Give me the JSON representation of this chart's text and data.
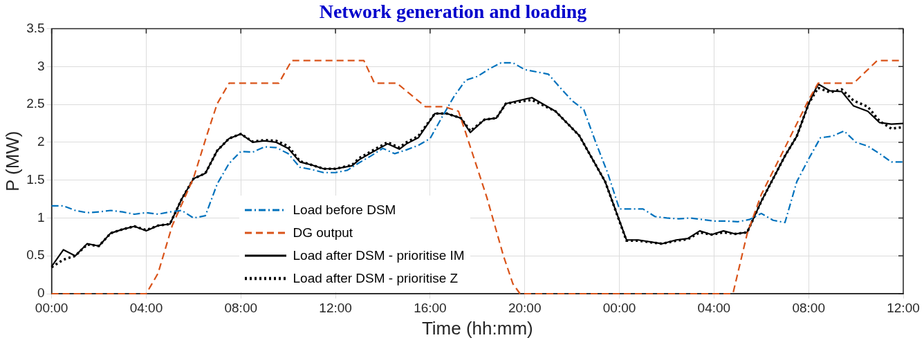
{
  "chart_data": {
    "type": "line",
    "title": "Network generation and loading",
    "xlabel": "Time (hh:mm)",
    "ylabel": "P (MW)",
    "xlim": [
      "--01-01T00:00",
      "--01-02T12:00"
    ],
    "xticks": [
      {
        "value": "--01-01T00:00",
        "label": "00:00"
      },
      {
        "value": "--01-01T04:00",
        "label": "04:00"
      },
      {
        "value": "--01-01T08:00",
        "label": "08:00"
      },
      {
        "value": "--01-01T12:00",
        "label": "12:00"
      },
      {
        "value": "--01-01T16:00",
        "label": "16:00"
      },
      {
        "value": "--01-01T20:00",
        "label": "20:00"
      },
      {
        "value": "--01-02T00:00",
        "label": "00:00"
      },
      {
        "value": "--01-02T04:00",
        "label": "04:00"
      },
      {
        "value": "--01-02T08:00",
        "label": "08:00"
      },
      {
        "value": "--01-02T12:00",
        "label": "12:00"
      }
    ],
    "ylim": [
      0,
      3.5
    ],
    "yticks": [
      0,
      0.5,
      1,
      1.5,
      2,
      2.5,
      3,
      3.5
    ],
    "grid": true,
    "legend": "bottom left",
    "marker": "none",
    "x": [
      "--01-01T00:00",
      "--01-01T00:30",
      "--01-01T01:00",
      "--01-01T01:30",
      "--01-01T02:00",
      "--01-01T02:30",
      "--01-01T03:00",
      "--01-01T03:30",
      "--01-01T04:00",
      "--01-01T04:30",
      "--01-01T05:00",
      "--01-01T05:30",
      "--01-01T06:00",
      "--01-01T06:30",
      "--01-01T07:00",
      "--01-01T07:30",
      "--01-01T08:00",
      "--01-01T08:30",
      "--01-01T09:00",
      "--01-01T09:30",
      "--01-01T10:00",
      "--01-01T10:30",
      "--01-01T11:00",
      "--01-01T11:30",
      "--01-01T12:00",
      "--01-01T12:30",
      "--01-01T13:00",
      "--01-01T13:30",
      "--01-01T14:00",
      "--01-01T14:30",
      "--01-01T15:00",
      "--01-01T15:30",
      "--01-01T16:00",
      "--01-01T16:30",
      "--01-01T17:00",
      "--01-01T17:30",
      "--01-01T18:00",
      "--01-01T18:30",
      "--01-01T19:00",
      "--01-01T19:30",
      "--01-01T20:00",
      "--01-01T20:30",
      "--01-01T21:00",
      "--01-01T21:30",
      "--01-01T22:00",
      "--01-01T22:30",
      "--01-01T23:00",
      "--01-01T23:30",
      "--01-02T00:00",
      "--01-02T00:30",
      "--01-02T01:00",
      "--01-02T01:30",
      "--01-02T02:00",
      "--01-02T02:30",
      "--01-02T03:00",
      "--01-02T03:30",
      "--01-02T04:00",
      "--01-02T04:30",
      "--01-02T05:00",
      "--01-02T05:30",
      "--01-02T06:00",
      "--01-02T06:30",
      "--01-02T07:00",
      "--01-02T07:30",
      "--01-02T08:00",
      "--01-02T08:30",
      "--01-02T09:00",
      "--01-02T09:30",
      "--01-02T10:00",
      "--01-02T10:30",
      "--01-02T11:00",
      "--01-02T11:30",
      "--01-02T12:00"
    ],
    "series": [
      {
        "name": "Load before DSM",
        "color": "#0072bd",
        "line_style": "dashdot",
        "values": [
          1.16,
          1.16,
          1.1,
          1.07,
          1.08,
          1.1,
          1.08,
          1.05,
          1.07,
          1.05,
          1.08,
          1.1,
          1.0,
          1.03,
          1.45,
          1.72,
          1.88,
          1.87,
          1.94,
          1.93,
          1.85,
          1.67,
          1.64,
          1.6,
          1.6,
          1.63,
          1.73,
          1.82,
          1.92,
          1.85,
          1.9,
          1.96,
          2.05,
          2.33,
          2.6,
          2.82,
          2.87,
          2.97,
          3.05,
          3.05,
          2.96,
          2.93,
          2.9,
          2.72,
          2.55,
          2.43,
          2.0,
          1.6,
          1.12,
          1.12,
          1.12,
          1.02,
          1.0,
          0.99,
          1.0,
          0.98,
          0.96,
          0.96,
          0.95,
          0.98,
          1.06,
          0.97,
          0.94,
          1.48,
          1.78,
          2.06,
          2.08,
          2.15,
          2.0,
          1.95,
          1.85,
          1.74,
          1.74
        ]
      },
      {
        "name": "DG output",
        "color": "#d95319",
        "line_style": "dashed",
        "x": [
          "--01-01T00:00",
          "--01-01T04:00",
          "--01-01T04:30",
          "--01-01T05:06",
          "--01-01T06:00",
          "--01-01T06:36",
          "--01-01T07:00",
          "--01-01T07:30",
          "--01-01T09:36",
          "--01-01T10:09",
          "--01-01T13:12",
          "--01-01T13:39",
          "--01-01T14:36",
          "--01-01T15:48",
          "--01-01T16:36",
          "--01-01T17:12",
          "--01-01T17:30",
          "--01-01T18:24",
          "--01-01T19:06",
          "--01-01T19:30",
          "--01-01T19:48",
          "--01-02T04:48",
          "--01-02T05:24",
          "--01-02T06:00",
          "--01-02T07:00",
          "--01-02T08:00",
          "--01-02T08:24",
          "--01-02T09:54",
          "--01-02T10:54",
          "--01-02T12:00"
        ],
        "values": [
          0,
          0,
          0.27,
          0.9,
          1.53,
          2.13,
          2.51,
          2.78,
          2.78,
          3.08,
          3.08,
          2.78,
          2.78,
          2.47,
          2.47,
          2.41,
          2.13,
          1.27,
          0.5,
          0.13,
          0,
          0,
          0.79,
          1.31,
          1.93,
          2.56,
          2.78,
          2.78,
          3.08,
          3.08
        ]
      },
      {
        "name": "Load after DSM - prioritise IM",
        "color": "#000000",
        "line_style": "solid",
        "x": [
          "--01-01T00:00",
          "--01-01T00:30",
          "--01-01T01:00",
          "--01-01T01:30",
          "--01-01T02:00",
          "--01-01T02:30",
          "--01-01T03:00",
          "--01-01T03:30",
          "--01-01T04:00",
          "--01-01T04:30",
          "--01-01T05:00",
          "--01-01T05:30",
          "--01-01T06:00",
          "--01-01T06:30",
          "--01-01T07:00",
          "--01-01T07:30",
          "--01-01T08:00",
          "--01-01T08:30",
          "--01-01T09:00",
          "--01-01T09:30",
          "--01-01T10:00",
          "--01-01T10:30",
          "--01-01T11:00",
          "--01-01T11:30",
          "--01-01T12:00",
          "--01-01T12:42",
          "--01-01T13:00",
          "--01-01T13:30",
          "--01-01T14:12",
          "--01-01T14:42",
          "--01-01T15:00",
          "--01-01T15:30",
          "--01-01T16:12",
          "--01-01T16:42",
          "--01-01T17:18",
          "--01-01T17:42",
          "--01-01T18:18",
          "--01-01T18:48",
          "--01-01T19:12",
          "--01-01T20:18",
          "--01-01T21:18",
          "--01-01T22:18",
          "--01-01T23:24",
          "--01-02T00:18",
          "--01-02T00:48",
          "--01-02T01:48",
          "--01-02T02:24",
          "--01-02T02:54",
          "--01-02T03:24",
          "--01-02T03:54",
          "--01-02T04:24",
          "--01-02T04:54",
          "--01-02T05:24",
          "--01-02T06:00",
          "--01-02T07:00",
          "--01-02T07:30",
          "--01-02T08:00",
          "--01-02T08:24",
          "--01-02T08:54",
          "--01-02T09:24",
          "--01-02T09:54",
          "--01-02T10:30",
          "--01-02T11:00",
          "--01-02T11:30",
          "--01-02T12:00"
        ],
        "values": [
          0.36,
          0.58,
          0.5,
          0.66,
          0.63,
          0.8,
          0.85,
          0.89,
          0.83,
          0.9,
          0.92,
          1.25,
          1.52,
          1.59,
          1.89,
          2.05,
          2.11,
          2.0,
          2.02,
          2.0,
          1.92,
          1.74,
          1.7,
          1.65,
          1.65,
          1.69,
          1.77,
          1.86,
          1.98,
          1.91,
          1.98,
          2.06,
          2.38,
          2.38,
          2.32,
          2.13,
          2.3,
          2.32,
          2.51,
          2.59,
          2.41,
          2.09,
          1.48,
          0.71,
          0.71,
          0.66,
          0.71,
          0.73,
          0.83,
          0.78,
          0.83,
          0.79,
          0.81,
          1.22,
          1.82,
          2.08,
          2.51,
          2.77,
          2.68,
          2.67,
          2.48,
          2.41,
          2.26,
          2.24,
          2.25
        ]
      },
      {
        "name": "Load after DSM - prioritise Z",
        "color": "#000000",
        "line_style": "dotted",
        "x": [
          "--01-01T00:00",
          "--01-01T00:30",
          "--01-01T01:00",
          "--01-01T01:30",
          "--01-01T02:00",
          "--01-01T02:30",
          "--01-01T03:00",
          "--01-01T03:30",
          "--01-01T04:00",
          "--01-01T04:30",
          "--01-01T05:00",
          "--01-01T05:30",
          "--01-01T06:00",
          "--01-01T06:30",
          "--01-01T07:00",
          "--01-01T07:30",
          "--01-01T08:00",
          "--01-01T08:30",
          "--01-01T09:00",
          "--01-01T09:30",
          "--01-01T10:00",
          "--01-01T10:30",
          "--01-01T11:00",
          "--01-01T11:30",
          "--01-01T12:00",
          "--01-01T12:42",
          "--01-01T13:00",
          "--01-01T13:30",
          "--01-01T14:12",
          "--01-01T14:42",
          "--01-01T15:00",
          "--01-01T15:30",
          "--01-01T16:12",
          "--01-01T16:42",
          "--01-01T17:18",
          "--01-01T17:42",
          "--01-01T18:18",
          "--01-01T18:48",
          "--01-01T19:12",
          "--01-01T20:18",
          "--01-01T21:18",
          "--01-01T22:18",
          "--01-01T23:24",
          "--01-02T00:18",
          "--01-02T00:48",
          "--01-02T01:48",
          "--01-02T02:24",
          "--01-02T02:54",
          "--01-02T03:24",
          "--01-02T03:54",
          "--01-02T04:24",
          "--01-02T04:54",
          "--01-02T05:24",
          "--01-02T06:00",
          "--01-02T07:00",
          "--01-02T07:30",
          "--01-02T08:00",
          "--01-02T08:24",
          "--01-02T08:54",
          "--01-02T09:24",
          "--01-02T09:54",
          "--01-02T10:30",
          "--01-02T11:00",
          "--01-02T11:30",
          "--01-02T12:00"
        ],
        "values": [
          0.35,
          0.45,
          0.5,
          0.65,
          0.63,
          0.8,
          0.85,
          0.89,
          0.84,
          0.9,
          0.92,
          1.25,
          1.52,
          1.59,
          1.89,
          2.05,
          2.11,
          2.01,
          2.03,
          2.02,
          1.95,
          1.75,
          1.7,
          1.65,
          1.65,
          1.7,
          1.79,
          1.88,
          2.0,
          1.93,
          2.0,
          2.08,
          2.38,
          2.38,
          2.32,
          2.15,
          2.3,
          2.32,
          2.51,
          2.56,
          2.41,
          2.09,
          1.48,
          0.7,
          0.7,
          0.66,
          0.7,
          0.72,
          0.81,
          0.78,
          0.81,
          0.79,
          0.81,
          1.22,
          1.82,
          2.08,
          2.51,
          2.72,
          2.66,
          2.7,
          2.55,
          2.47,
          2.28,
          2.18,
          2.2
        ]
      }
    ]
  }
}
